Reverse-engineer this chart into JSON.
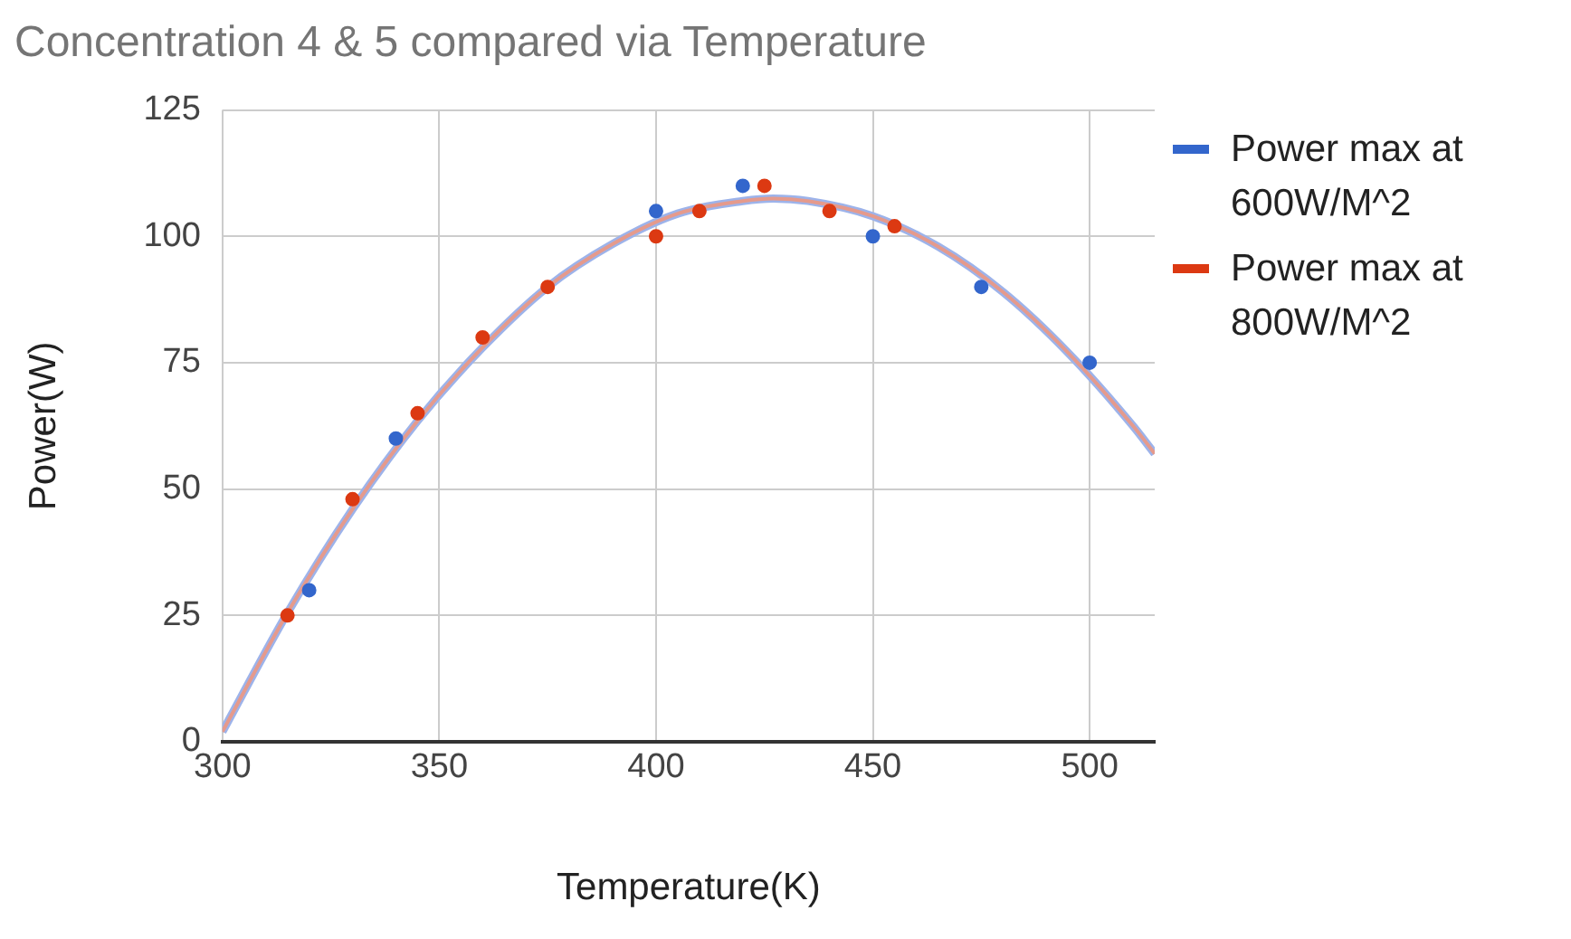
{
  "chart_data": {
    "type": "scatter",
    "title": "Concentration 4 & 5 compared via Temperature",
    "xlabel": "Temperature(K)",
    "ylabel": "Power(W)",
    "xlim": [
      300,
      515
    ],
    "xticks": [
      300,
      350,
      400,
      450,
      500
    ],
    "ylim": [
      0,
      125
    ],
    "yticks": [
      0,
      25,
      50,
      75,
      100,
      125
    ],
    "grid": true,
    "legend": "right",
    "marker": "circle",
    "series": [
      {
        "type": "line",
        "color": "#9db3ea",
        "line_style": "solid",
        "marker": "none",
        "x": [
          300,
          315,
          330,
          345,
          360,
          375,
          390,
          405,
          420,
          427,
          435,
          450,
          465,
          480,
          495,
          510,
          515
        ],
        "values": [
          2,
          25.5,
          46,
          63.5,
          78,
          90,
          98.5,
          104.5,
          107,
          107.5,
          107,
          104,
          98,
          89,
          77,
          62.5,
          57
        ]
      },
      {
        "type": "line",
        "color": "#e59a8c",
        "line_style": "solid",
        "marker": "none",
        "x": [
          300,
          315,
          330,
          345,
          360,
          375,
          390,
          405,
          420,
          427,
          435,
          450,
          465,
          480,
          495,
          510,
          515
        ],
        "values": [
          2,
          25.5,
          46,
          63.5,
          78,
          90,
          98.5,
          104.5,
          107,
          107.5,
          107,
          104,
          98,
          89,
          77,
          62.5,
          57
        ]
      },
      {
        "type": "scatter",
        "name": "Power max at 600W/M^2",
        "color": "#3366cc",
        "x": [
          320,
          340,
          400,
          420,
          450,
          475,
          500
        ],
        "values": [
          30,
          60,
          105,
          110,
          100,
          90,
          75
        ]
      },
      {
        "type": "scatter",
        "name": "Power max at 800W/M^2",
        "color": "#dc3912",
        "x": [
          315,
          330,
          345,
          360,
          375,
          400,
          410,
          425,
          440,
          455
        ],
        "values": [
          25,
          48,
          65,
          80,
          90,
          100,
          105,
          110,
          105,
          102
        ]
      }
    ]
  }
}
